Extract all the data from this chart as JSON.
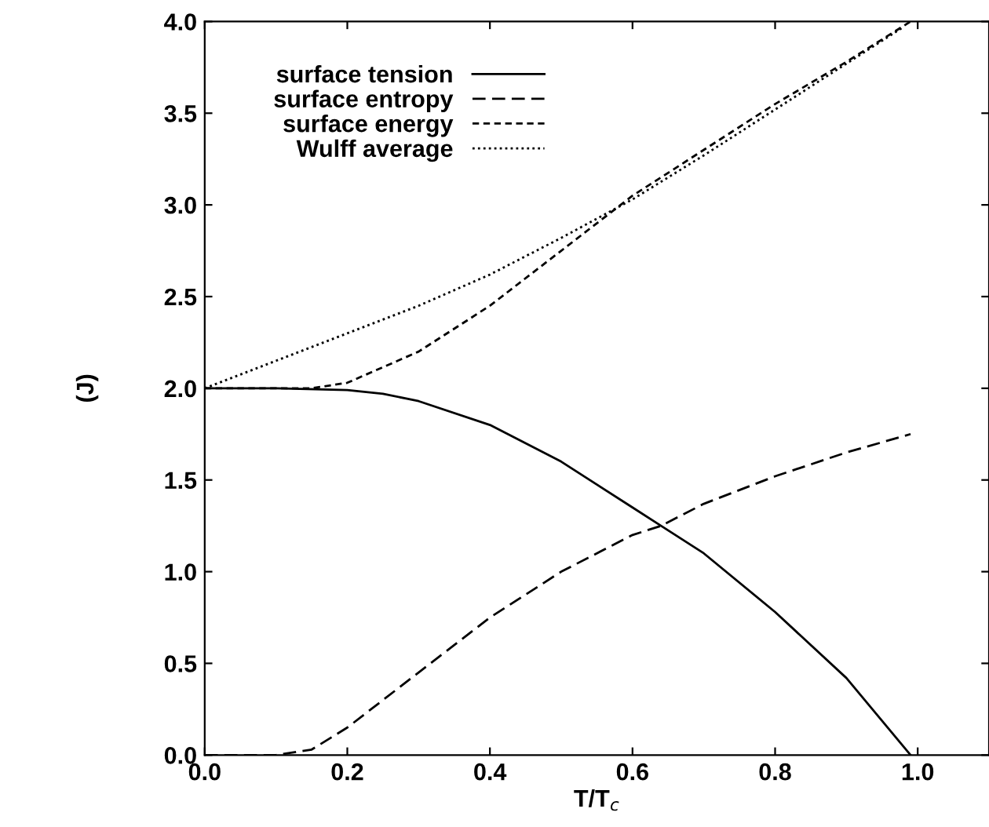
{
  "chart_data": {
    "type": "line",
    "xlabel": "T/T$_{c}$",
    "ylabel": "(J)",
    "xlim": [
      0,
      1.1
    ],
    "ylim": [
      0,
      4.0
    ],
    "xticks": [
      {
        "value": 0,
        "label": "0.0"
      },
      {
        "value": 0.2,
        "label": "0.2"
      },
      {
        "value": 0.4,
        "label": "0.4"
      },
      {
        "value": 0.6,
        "label": "0.6"
      },
      {
        "value": 0.8,
        "label": "0.8"
      },
      {
        "value": 1.0,
        "label": "1.0"
      }
    ],
    "yticks": [
      {
        "value": 0,
        "label": "0.0"
      },
      {
        "value": 0.5,
        "label": "0.5"
      },
      {
        "value": 1.0,
        "label": "1.0"
      },
      {
        "value": 1.5,
        "label": "1.5"
      },
      {
        "value": 2.0,
        "label": "2.0"
      },
      {
        "value": 2.5,
        "label": "2.5"
      },
      {
        "value": 3.0,
        "label": "3.0"
      },
      {
        "value": 3.5,
        "label": "3.5"
      },
      {
        "value": 4.0,
        "label": "4.0"
      }
    ],
    "grid": false,
    "legend": "top left",
    "marker": "none",
    "series": [
      {
        "name": "surface tension",
        "color": "#000000",
        "line_style": "solid",
        "x": [
          0,
          0.1,
          0.2,
          0.25,
          0.3,
          0.4,
          0.5,
          0.6,
          0.64,
          0.7,
          0.8,
          0.9,
          0.99
        ],
        "values": [
          2.0,
          2.0,
          1.99,
          1.97,
          1.93,
          1.8,
          1.6,
          1.35,
          1.25,
          1.1,
          0.78,
          0.42,
          0.0
        ]
      },
      {
        "name": "surface entropy",
        "color": "#000000",
        "line_style": "dashed",
        "x": [
          0,
          0.1,
          0.15,
          0.2,
          0.3,
          0.4,
          0.5,
          0.6,
          0.64,
          0.7,
          0.8,
          0.9,
          0.99
        ],
        "values": [
          0,
          0,
          0.03,
          0.15,
          0.45,
          0.75,
          1.0,
          1.2,
          1.25,
          1.37,
          1.52,
          1.65,
          1.75
        ]
      },
      {
        "name": "surface energy",
        "color": "#000000",
        "line_style": "short dashed",
        "x": [
          0,
          0.1,
          0.15,
          0.2,
          0.3,
          0.4,
          0.5,
          0.6,
          0.7,
          0.8,
          0.9,
          0.99
        ],
        "values": [
          2.0,
          2.0,
          2.0,
          2.03,
          2.2,
          2.45,
          2.75,
          3.05,
          3.3,
          3.55,
          3.78,
          4.0
        ]
      },
      {
        "name": "Wulff average",
        "color": "#000000",
        "line_style": "dotted",
        "x": [
          0,
          0.1,
          0.2,
          0.3,
          0.4,
          0.5,
          0.6,
          0.7,
          0.8,
          0.9,
          0.98
        ],
        "values": [
          2.0,
          2.15,
          2.3,
          2.45,
          2.62,
          2.82,
          3.03,
          3.27,
          3.52,
          3.77,
          3.97
        ]
      }
    ]
  }
}
